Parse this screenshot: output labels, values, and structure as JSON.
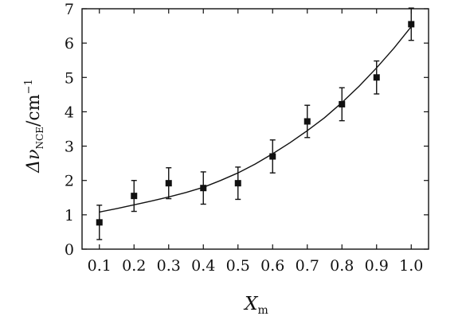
{
  "chart_data": {
    "type": "scatter",
    "xlabel_main": "X",
    "xlabel_sub": "m",
    "ylabel_main": "Δν",
    "ylabel_sub": "NCE",
    "ylabel_unit": "/cm",
    "ylabel_sup": "−1",
    "xlim": [
      0.05,
      1.05
    ],
    "ylim": [
      0,
      7
    ],
    "xticks": [
      0.1,
      0.2,
      0.3,
      0.4,
      0.5,
      0.6,
      0.7,
      0.8,
      0.9,
      1.0
    ],
    "xtick_labels": [
      "0.1",
      "0.2",
      "0.3",
      "0.4",
      "0.5",
      "0.6",
      "0.7",
      "0.8",
      "0.9",
      "1.0"
    ],
    "yticks": [
      0,
      1,
      2,
      3,
      4,
      5,
      6,
      7
    ],
    "ytick_labels": [
      "0",
      "1",
      "2",
      "3",
      "4",
      "5",
      "6",
      "7"
    ],
    "grid": false,
    "series": [
      {
        "marker": "square",
        "x": [
          0.1,
          0.2,
          0.3,
          0.4,
          0.5,
          0.6,
          0.7,
          0.8,
          0.9,
          1.0
        ],
        "y": [
          0.78,
          1.55,
          1.92,
          1.78,
          1.92,
          2.7,
          3.72,
          4.22,
          5.0,
          6.55
        ],
        "yerr": [
          0.5,
          0.45,
          0.45,
          0.47,
          0.47,
          0.48,
          0.47,
          0.48,
          0.48,
          0.47
        ]
      }
    ],
    "fit_curve": {
      "x": [
        0.1,
        0.15,
        0.2,
        0.25,
        0.3,
        0.35,
        0.4,
        0.45,
        0.5,
        0.55,
        0.6,
        0.65,
        0.7,
        0.75,
        0.8,
        0.85,
        0.9,
        0.95,
        1.0
      ],
      "y": [
        1.08,
        1.18,
        1.29,
        1.4,
        1.52,
        1.65,
        1.8,
        2.0,
        2.22,
        2.48,
        2.78,
        3.1,
        3.45,
        3.83,
        4.27,
        4.75,
        5.28,
        5.85,
        6.48
      ]
    }
  }
}
